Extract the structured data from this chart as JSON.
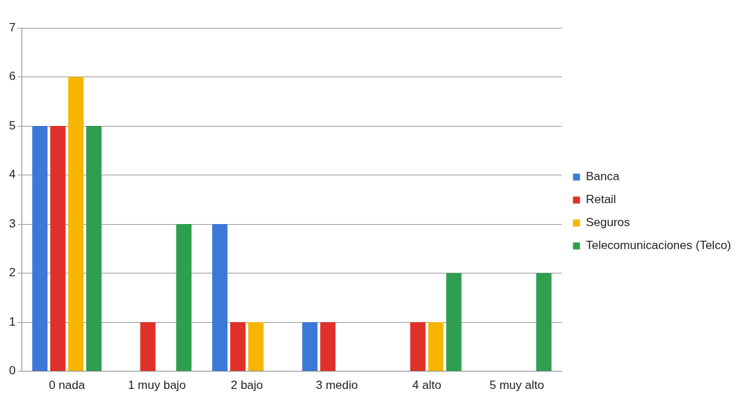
{
  "chart_data": {
    "type": "bar",
    "categories": [
      "0 nada",
      "1 muy bajo",
      "2 bajo",
      "3 medio",
      "4 alto",
      "5 muy alto"
    ],
    "series": [
      {
        "name": "Banca",
        "color": "#3c78d8",
        "values": [
          5,
          0,
          3,
          1,
          0,
          0
        ]
      },
      {
        "name": "Retail",
        "color": "#e0302a",
        "values": [
          5,
          1,
          1,
          1,
          1,
          0
        ]
      },
      {
        "name": "Seguros",
        "color": "#f7b500",
        "values": [
          6,
          0,
          1,
          0,
          1,
          0
        ]
      },
      {
        "name": "Telecomunicaciones (Telco)",
        "color": "#2e9e4f",
        "values": [
          5,
          3,
          0,
          0,
          2,
          2
        ]
      }
    ],
    "ylim": [
      0,
      7
    ],
    "yticks": [
      0,
      1,
      2,
      3,
      4,
      5,
      6,
      7
    ],
    "grid": "y",
    "legend": "right"
  }
}
